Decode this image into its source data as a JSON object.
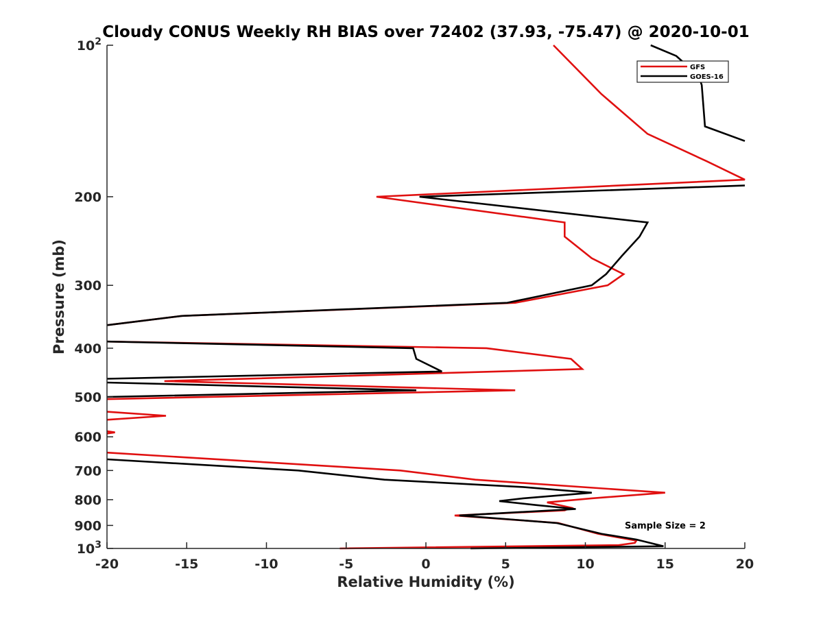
{
  "chart_data": {
    "type": "line",
    "title": "Cloudy CONUS Weekly RH BIAS over 72402 (37.93, -75.47) @ 2020-10-01",
    "xlabel": "Relative Humidity (%)",
    "ylabel": "Pressure (mb)",
    "xlim": [
      -20,
      20
    ],
    "ylim": [
      100,
      1000
    ],
    "y_scale": "log",
    "y_reversed": true,
    "grid": false,
    "legend_location": "top-right",
    "x_ticks": [
      -20,
      -15,
      -10,
      -5,
      0,
      5,
      10,
      15,
      20
    ],
    "x_tick_labels": [
      "-20",
      "-15",
      "-10",
      "-5",
      "0",
      "5",
      "10",
      "15",
      "20"
    ],
    "y_ticks": [
      100,
      200,
      300,
      400,
      500,
      600,
      700,
      800,
      900,
      1000
    ],
    "y_tick_labels": [
      {
        "base": "10",
        "exp": "2"
      },
      {
        "base": "200",
        "exp": ""
      },
      {
        "base": "300",
        "exp": ""
      },
      {
        "base": "400",
        "exp": ""
      },
      {
        "base": "500",
        "exp": ""
      },
      {
        "base": "600",
        "exp": ""
      },
      {
        "base": "700",
        "exp": ""
      },
      {
        "base": "800",
        "exp": ""
      },
      {
        "base": "900",
        "exp": ""
      },
      {
        "base": "10",
        "exp": "3"
      }
    ],
    "annotations": [
      {
        "text": "Sample Size = 2",
        "x": 17.5,
        "y": 900
      }
    ],
    "series": [
      {
        "name": "GFS",
        "color": "#e01010",
        "segments": [
          [
            [
              8,
              100
            ],
            [
              11,
              125
            ],
            [
              13.9,
              150
            ],
            [
              17.6,
              170
            ],
            [
              20,
              185
            ],
            [
              -3.1,
              200
            ],
            [
              8.7,
              225
            ],
            [
              8.7,
              240
            ],
            [
              10.4,
              265
            ],
            [
              12.4,
              285
            ],
            [
              11.4,
              300
            ],
            [
              5.6,
              325
            ],
            [
              -15.3,
              345
            ],
            [
              -20,
              360
            ]
          ],
          [
            [
              -20,
              388
            ],
            [
              3.8,
              400
            ],
            [
              9.1,
              420
            ],
            [
              9.8,
              440
            ],
            [
              -16.4,
              465
            ],
            [
              5.6,
              485
            ],
            [
              -20,
              505
            ]
          ],
          [
            [
              -20,
              535
            ],
            [
              -16.3,
              545
            ],
            [
              -20,
              555
            ]
          ],
          [
            [
              -20,
              585
            ],
            [
              -19.5,
              588
            ],
            [
              -20,
              591
            ]
          ],
          [
            [
              -20,
              645
            ],
            [
              -1.6,
              700
            ],
            [
              3.1,
              730
            ],
            [
              11.1,
              760
            ],
            [
              15,
              775
            ],
            [
              10.4,
              795
            ],
            [
              7.6,
              810
            ],
            [
              9.1,
              830
            ],
            [
              8.7,
              840
            ],
            [
              1.8,
              860
            ],
            [
              8.3,
              890
            ],
            [
              10.8,
              935
            ],
            [
              13.2,
              965
            ],
            [
              13.1,
              975
            ],
            [
              12.1,
              985
            ],
            [
              -5.4,
              1000
            ]
          ]
        ]
      },
      {
        "name": "GOES-16",
        "color": "#000000",
        "segments": [
          [
            [
              14.1,
              100
            ],
            [
              15.7,
              105
            ],
            [
              17.1,
              115
            ],
            [
              17.3,
              120
            ],
            [
              17.5,
              145
            ],
            [
              20,
              155
            ]
          ],
          [
            [
              20,
              190
            ],
            [
              -0.4,
              200
            ],
            [
              13.9,
              225
            ],
            [
              13.4,
              240
            ],
            [
              12.3,
              262
            ],
            [
              11.3,
              285
            ],
            [
              10.4,
              300
            ],
            [
              5.1,
              325
            ],
            [
              -15.3,
              345
            ],
            [
              -20,
              360
            ]
          ],
          [
            [
              -20,
              388
            ],
            [
              -0.8,
              400
            ],
            [
              -0.6,
              420
            ],
            [
              1,
              445
            ],
            [
              -20,
              460
            ]
          ],
          [
            [
              -20,
              468
            ],
            [
              -0.6,
              485
            ],
            [
              -20,
              500
            ]
          ],
          [
            [
              -20,
              665
            ],
            [
              -8,
              700
            ],
            [
              -2.6,
              730
            ],
            [
              6.1,
              755
            ],
            [
              10.4,
              775
            ],
            [
              6.1,
              795
            ],
            [
              4.6,
              805
            ],
            [
              6.9,
              820
            ],
            [
              9.4,
              835
            ],
            [
              2.1,
              860
            ],
            [
              8.2,
              890
            ],
            [
              11,
              935
            ],
            [
              13.2,
              960
            ],
            [
              14.9,
              990
            ],
            [
              2.8,
              1000
            ]
          ]
        ]
      }
    ]
  }
}
